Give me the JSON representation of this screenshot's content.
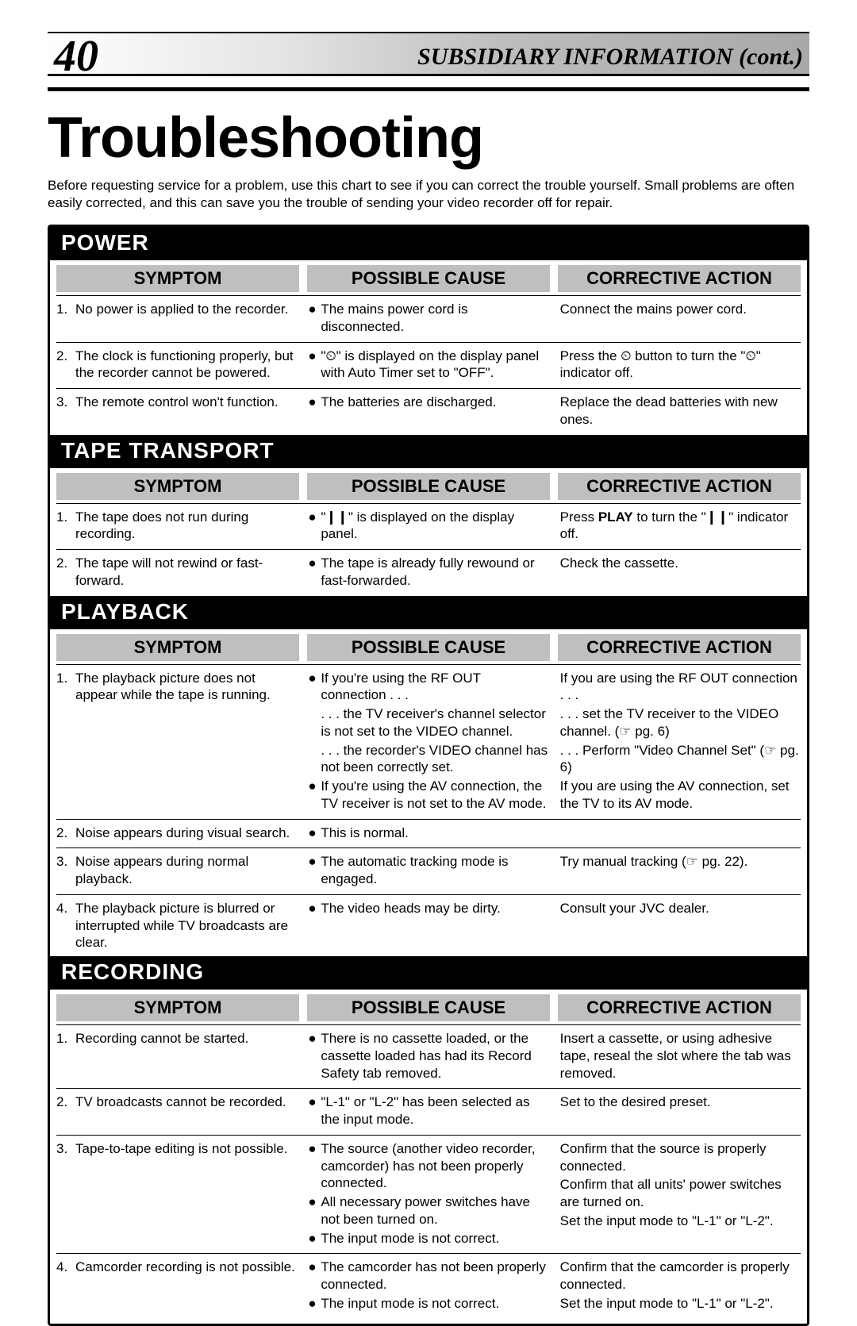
{
  "page_number": "40",
  "header_subtitle": "SUBSIDIARY INFORMATION (cont.)",
  "title": "Troubleshooting",
  "intro": "Before requesting service for a problem, use this chart to see if you can correct the trouble yourself. Small problems are often easily corrected, and this can save you the trouble of sending your video recorder off for repair.",
  "col_symptom": "SYMPTOM",
  "col_cause": "POSSIBLE CAUSE",
  "col_action": "CORRECTIVE ACTION",
  "sections": [
    {
      "name": "POWER",
      "rows": [
        {
          "n": "1.",
          "symptom": "No power is applied to the recorder.",
          "cause_items": [
            {
              "prefix": "●",
              "text": "The mains power cord is disconnected."
            }
          ],
          "action_items": [
            "Connect the mains power cord."
          ]
        },
        {
          "n": "2.",
          "symptom": "The clock is functioning properly, but the recorder cannot be powered.",
          "cause_items": [
            {
              "prefix": "●",
              "text": "\"⏲\" is displayed on the display panel with Auto Timer set to \"OFF\"."
            }
          ],
          "action_items": [
            "Press the ⏲ button to turn the \"⏲\" indicator off."
          ]
        },
        {
          "n": "3.",
          "symptom": "The remote control won't function.",
          "cause_items": [
            {
              "prefix": "●",
              "text": "The batteries are discharged."
            }
          ],
          "action_items": [
            "Replace the dead batteries with new ones."
          ]
        }
      ]
    },
    {
      "name": "TAPE TRANSPORT",
      "rows": [
        {
          "n": "1.",
          "symptom": "The tape does not run during recording.",
          "cause_items": [
            {
              "prefix": "●",
              "text": "\"❙❙\" is displayed on the display panel."
            }
          ],
          "action_items": [
            "Press PLAY to turn the \"❙❙\" indicator off."
          ]
        },
        {
          "n": "2.",
          "symptom": "The tape will not rewind or fast-forward.",
          "cause_items": [
            {
              "prefix": "●",
              "text": "The tape is already fully rewound or fast-forwarded."
            }
          ],
          "action_items": [
            "Check the cassette."
          ]
        }
      ]
    },
    {
      "name": "PLAYBACK",
      "rows": [
        {
          "n": "1.",
          "symptom": "The playback picture does not appear while the tape is running.",
          "cause_items": [
            {
              "prefix": "●",
              "text": "If you're using the RF OUT connection . . ."
            },
            {
              "prefix": "",
              "sub": true,
              "text": ". . . the TV receiver's channel selector is not set to the VIDEO channel."
            },
            {
              "prefix": "",
              "sub": true,
              "text": ". . . the recorder's VIDEO channel has not been correctly set."
            },
            {
              "prefix": "●",
              "text": "If you're using the AV connection, the TV receiver is not set to the AV mode."
            }
          ],
          "action_items": [
            "If you are using the RF OUT connection . . .",
            ". . . set the TV receiver to the VIDEO channel. (☞ pg. 6)",
            ". . . Perform \"Video Channel Set\" (☞ pg. 6)",
            "If you are using the AV connection, set the TV to its AV mode."
          ]
        },
        {
          "n": "2.",
          "symptom": "Noise appears during visual search.",
          "cause_items": [
            {
              "prefix": "●",
              "text": "This is normal."
            }
          ],
          "action_items": []
        },
        {
          "n": "3.",
          "symptom": "Noise appears during normal playback.",
          "cause_items": [
            {
              "prefix": "●",
              "text": "The automatic tracking mode is engaged."
            }
          ],
          "action_items": [
            "Try manual tracking (☞ pg. 22)."
          ]
        },
        {
          "n": "4.",
          "symptom": "The playback picture is blurred or interrupted while TV broadcasts are clear.",
          "cause_items": [
            {
              "prefix": "●",
              "text": "The video heads may be dirty."
            }
          ],
          "action_items": [
            "Consult your JVC dealer."
          ]
        }
      ]
    },
    {
      "name": "RECORDING",
      "rows": [
        {
          "n": "1.",
          "symptom": "Recording cannot be started.",
          "cause_items": [
            {
              "prefix": "●",
              "text": "There is no cassette loaded, or the cassette loaded has had its Record Safety tab removed."
            }
          ],
          "action_items": [
            "Insert a cassette, or using adhesive tape, reseal the slot where the tab was removed."
          ]
        },
        {
          "n": "2.",
          "symptom": "TV broadcasts cannot be recorded.",
          "cause_items": [
            {
              "prefix": "●",
              "text": "\"L-1\" or \"L-2\" has been selected as the input mode."
            }
          ],
          "action_items": [
            "Set to the desired preset."
          ]
        },
        {
          "n": "3.",
          "symptom": "Tape-to-tape editing is not possible.",
          "cause_items": [
            {
              "prefix": "●",
              "text": "The source (another video recorder, camcorder) has not been properly connected."
            },
            {
              "prefix": "●",
              "text": "All necessary power switches have not been turned on."
            },
            {
              "prefix": "●",
              "text": "The input mode is not correct."
            }
          ],
          "action_items": [
            "Confirm that the source is properly connected.",
            "Confirm that all units' power switches are turned on.",
            "Set the input mode to \"L-1\" or \"L-2\"."
          ]
        },
        {
          "n": "4.",
          "symptom": "Camcorder recording is not possible.",
          "cause_items": [
            {
              "prefix": "●",
              "text": "The camcorder has not been properly connected."
            },
            {
              "prefix": "●",
              "text": "The input mode is not correct."
            }
          ],
          "action_items": [
            "Confirm that the camcorder is properly connected.",
            "Set the input mode to \"L-1\" or \"L-2\"."
          ]
        }
      ]
    }
  ]
}
